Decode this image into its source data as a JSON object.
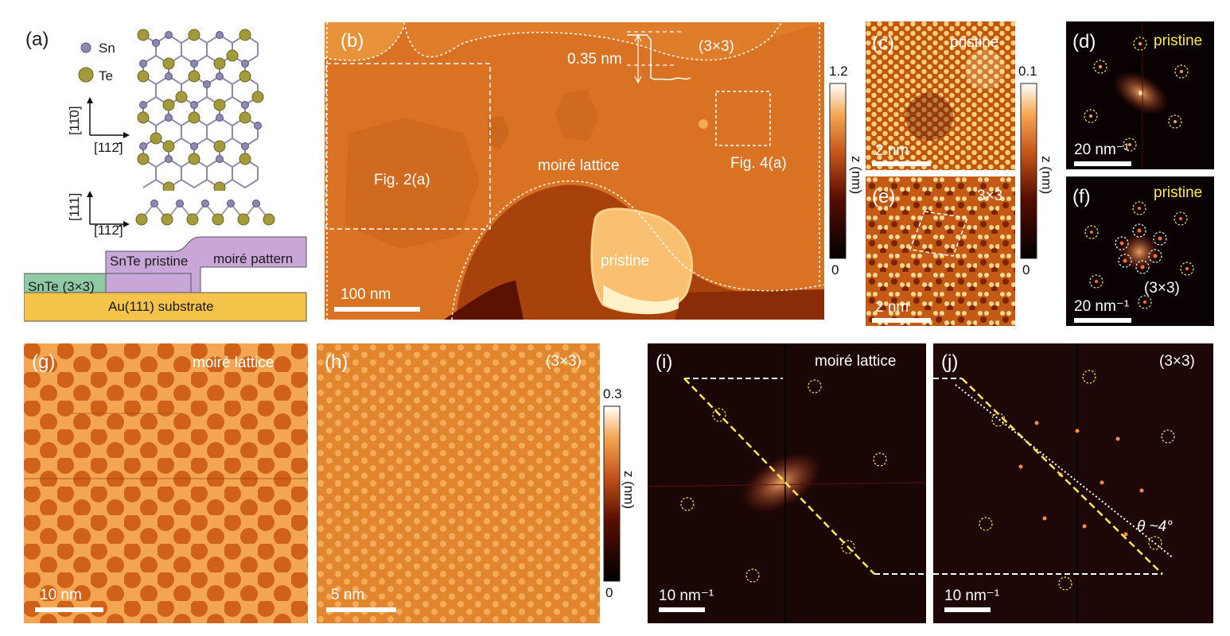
{
  "panel_a": {
    "label": "(a)",
    "legend": [
      {
        "symbol": "Sn",
        "color": "#8c89b5"
      },
      {
        "symbol": "Te",
        "color": "#a39a3c"
      }
    ],
    "axes_top": {
      "vertical": "[11̄0]",
      "horizontal": "[112̄]"
    },
    "axes_side": {
      "vertical": "[111]",
      "horizontal": "[112̄]"
    },
    "schematic": {
      "snte_3x3": "SnTe (3×3)",
      "snte_pristine": "SnTe pristine",
      "moire_pattern": "moiré pattern",
      "substrate": "Au(111) substrate"
    }
  },
  "panel_b": {
    "label": "(b)",
    "step_height": "0.35 nm",
    "region_3x3": "(3×3)",
    "box_fig2": "Fig. 2(a)",
    "box_fig4": "Fig. 4(a)",
    "region_moire": "moiré lattice",
    "region_pristine": "pristine",
    "scalebar": "100 nm",
    "colorbar": {
      "max": "1.2",
      "min": "0",
      "axis": "z (nm)"
    }
  },
  "panel_c": {
    "label": "(c)",
    "tag": "pristine",
    "scalebar": "2 nm"
  },
  "colorbar_ce": {
    "max": "0.1",
    "min": "0",
    "axis": "z (nm)"
  },
  "panel_d": {
    "label": "(d)",
    "tag": "pristine",
    "scalebar": "20 nm⁻¹"
  },
  "panel_e": {
    "label": "(e)",
    "tag": "3×3",
    "scalebar": "2 nm"
  },
  "panel_f": {
    "label": "(f)",
    "tag": "pristine",
    "tag2": "(3×3)",
    "scalebar": "20 nm⁻¹"
  },
  "panel_g": {
    "label": "(g)",
    "tag": "moiré lattice",
    "scalebar": "10 nm"
  },
  "panel_h": {
    "label": "(h)",
    "tag": "(3×3)",
    "scalebar": "5 nm"
  },
  "colorbar_gh": {
    "max": "0.3",
    "min": "0",
    "axis": "z (nm)"
  },
  "panel_i": {
    "label": "(i)",
    "tag": "moiré lattice",
    "scalebar": "10 nm⁻¹"
  },
  "panel_j": {
    "label": "(j)",
    "tag": "(3×3)",
    "angle": "θ ~4°",
    "scalebar": "10 nm⁻¹"
  },
  "colors": {
    "stm_mid": "#d9711f",
    "fft_bg": "#1b0606",
    "highlight_yellow": "#ffe94a"
  }
}
